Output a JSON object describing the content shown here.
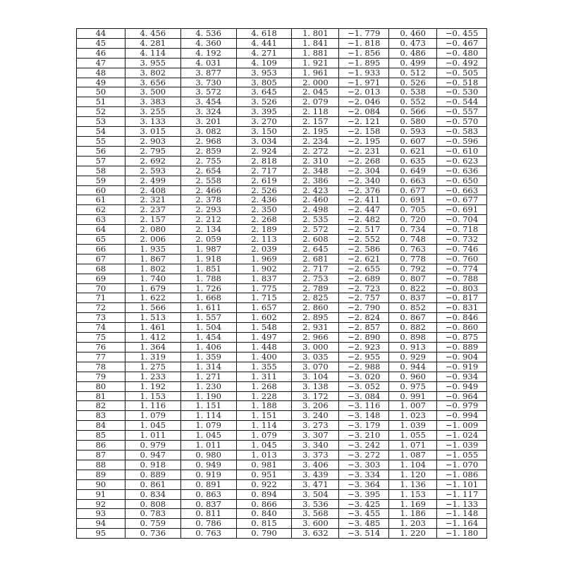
{
  "table": {
    "rows": [
      [
        "44",
        "4. 456",
        "4. 536",
        "4. 618",
        "1. 801",
        "−1. 779",
        "0. 460",
        "−0. 455"
      ],
      [
        "45",
        "4. 281",
        "4. 360",
        "4. 441",
        "1. 841",
        "−1. 818",
        "0. 473",
        "−0. 467"
      ],
      [
        "46",
        "4. 114",
        "4. 192",
        "4. 271",
        "1. 881",
        "−1. 856",
        "0. 486",
        "−0. 480"
      ],
      [
        "47",
        "3. 955",
        "4. 031",
        "4. 109",
        "1. 921",
        "−1. 895",
        "0. 499",
        "−0. 492"
      ],
      [
        "48",
        "3. 802",
        "3. 877",
        "3. 953",
        "1. 961",
        "−1. 933",
        "0. 512",
        "−0. 505"
      ],
      [
        "49",
        "3. 656",
        "3. 730",
        "3. 805",
        "2. 000",
        "−1. 971",
        "0. 526",
        "−0. 518"
      ],
      [
        "50",
        "3. 500",
        "3. 572",
        "3. 645",
        "2. 045",
        "−2. 013",
        "0. 538",
        "−0. 530"
      ],
      [
        "51",
        "3. 383",
        "3. 454",
        "3. 526",
        "2. 079",
        "−2. 046",
        "0. 552",
        "−0. 544"
      ],
      [
        "52",
        "3. 255",
        "3. 324",
        "3. 395",
        "2. 118",
        "−2. 084",
        "0. 566",
        "−0. 557"
      ],
      [
        "53",
        "3. 133",
        "3. 201",
        "3. 270",
        "2. 157",
        "−2. 121",
        "0. 580",
        "−0. 570"
      ],
      [
        "54",
        "3. 015",
        "3. 082",
        "3. 150",
        "2. 195",
        "−2. 158",
        "0. 593",
        "−0. 583"
      ],
      [
        "55",
        "2. 903",
        "2. 968",
        "3. 034",
        "2. 234",
        "−2. 195",
        "0. 607",
        "−0. 596"
      ],
      [
        "56",
        "2. 795",
        "2. 859",
        "2. 924",
        "2. 272",
        "−2. 231",
        "0. 621",
        "−0. 610"
      ],
      [
        "57",
        "2. 692",
        "2. 755",
        "2. 818",
        "2. 310",
        "−2. 268",
        "0. 635",
        "−0. 623"
      ],
      [
        "58",
        "2. 593",
        "2. 654",
        "2. 717",
        "2. 348",
        "−2. 304",
        "0. 649",
        "−0. 636"
      ],
      [
        "59",
        "2. 499",
        "2. 558",
        "2. 619",
        "2. 386",
        "−2. 340",
        "0. 663",
        "−0. 650"
      ],
      [
        "60",
        "2. 408",
        "2. 466",
        "2. 526",
        "2. 423",
        "−2. 376",
        "0. 677",
        "−0. 663"
      ],
      [
        "61",
        "2. 321",
        "2. 378",
        "2. 436",
        "2. 460",
        "−2. 411",
        "0. 691",
        "−0. 677"
      ],
      [
        "62",
        "2. 237",
        "2. 293",
        "2. 350",
        "2. 498",
        "−2. 447",
        "0. 705",
        "−0. 691"
      ],
      [
        "63",
        "2. 157",
        "2. 212",
        "2. 268",
        "2. 535",
        "−2. 482",
        "0. 720",
        "−0. 704"
      ],
      [
        "64",
        "2. 080",
        "2. 134",
        "2. 189",
        "2. 572",
        "−2. 517",
        "0. 734",
        "−0. 718"
      ],
      [
        "65",
        "2. 006",
        "2. 059",
        "2. 113",
        "2. 608",
        "−2. 552",
        "0. 748",
        "−0. 732"
      ],
      [
        "66",
        "1. 935",
        "1. 987",
        "2. 039",
        "2. 645",
        "−2. 586",
        "0. 763",
        "−0. 746"
      ],
      [
        "67",
        "1. 867",
        "1. 918",
        "1. 969",
        "2. 681",
        "−2. 621",
        "0. 778",
        "−0. 760"
      ],
      [
        "68",
        "1. 802",
        "1. 851",
        "1. 902",
        "2. 717",
        "−2. 655",
        "0. 792",
        "−0. 774"
      ],
      [
        "69",
        "1. 740",
        "1. 788",
        "1. 837",
        "2. 753",
        "−2. 689",
        "0. 807",
        "−0. 788"
      ],
      [
        "70",
        "1. 679",
        "1. 726",
        "1. 775",
        "2. 789",
        "−2. 723",
        "0. 822",
        "−0. 803"
      ],
      [
        "71",
        "1. 622",
        "1. 668",
        "1. 715",
        "2. 825",
        "−2. 757",
        "0. 837",
        "−0. 817"
      ],
      [
        "72",
        "1. 566",
        "1. 611",
        "1. 657",
        "2. 860",
        "−2. 790",
        "0. 852",
        "−0. 831"
      ],
      [
        "73",
        "1. 513",
        "1. 557",
        "1. 602",
        "2. 895",
        "−2. 824",
        "0. 867",
        "−0. 846"
      ],
      [
        "74",
        "1. 461",
        "1. 504",
        "1. 548",
        "2. 931",
        "−2. 857",
        "0. 882",
        "−0. 860"
      ],
      [
        "75",
        "1. 412",
        "1. 454",
        "1. 497",
        "2. 966",
        "−2. 890",
        "0. 898",
        "−0. 875"
      ],
      [
        "76",
        "1. 364",
        "1. 406",
        "1. 448",
        "3. 000",
        "−2. 923",
        "0. 913",
        "−0. 889"
      ],
      [
        "77",
        "1. 319",
        "1. 359",
        "1. 400",
        "3. 035",
        "−2. 955",
        "0. 929",
        "−0. 904"
      ],
      [
        "78",
        "1. 275",
        "1. 314",
        "1. 355",
        "3. 070",
        "−2. 988",
        "0. 944",
        "−0. 919"
      ],
      [
        "79",
        "1. 233",
        "1. 271",
        "1. 311",
        "3. 104",
        "−3. 020",
        "0. 960",
        "−0. 934"
      ],
      [
        "80",
        "1. 192",
        "1. 230",
        "1. 268",
        "3. 138",
        "−3. 052",
        "0. 975",
        "−0. 949"
      ],
      [
        "81",
        "1. 153",
        "1. 190",
        "1. 228",
        "3. 172",
        "−3. 084",
        "0. 991",
        "−0. 964"
      ],
      [
        "82",
        "1. 116",
        "1. 151",
        "1. 188",
        "3. 206",
        "−3. 116",
        "1. 007",
        "−0. 979"
      ],
      [
        "83",
        "1. 079",
        "1. 114",
        "1. 151",
        "3. 240",
        "−3. 148",
        "1. 023",
        "−0. 994"
      ],
      [
        "84",
        "1. 045",
        "1. 079",
        "1. 114",
        "3. 273",
        "−3. 179",
        "1. 039",
        "−1. 009"
      ],
      [
        "85",
        "1. 011",
        "1. 045",
        "1. 079",
        "3. 307",
        "−3. 210",
        "1. 055",
        "−1. 024"
      ],
      [
        "86",
        "0. 979",
        "1. 011",
        "1. 045",
        "3. 340",
        "−3. 242",
        "1. 071",
        "−1. 039"
      ],
      [
        "87",
        "0. 947",
        "0. 980",
        "1. 013",
        "3. 373",
        "−3. 272",
        "1. 087",
        "−1. 055"
      ],
      [
        "88",
        "0. 918",
        "0. 949",
        "0. 981",
        "3. 406",
        "−3. 303",
        "1. 104",
        "−1. 070"
      ],
      [
        "89",
        "0. 889",
        "0. 919",
        "0. 951",
        "3. 439",
        "−3. 334",
        "1. 120",
        "−1. 086"
      ],
      [
        "90",
        "0. 861",
        "0. 891",
        "0. 922",
        "3. 471",
        "−3. 364",
        "1. 136",
        "−1. 101"
      ],
      [
        "91",
        "0. 834",
        "0. 863",
        "0. 894",
        "3. 504",
        "−3. 395",
        "1. 153",
        "−1. 117"
      ],
      [
        "92",
        "0. 808",
        "0. 837",
        "0. 866",
        "3. 536",
        "−3. 425",
        "1. 169",
        "−1. 133"
      ],
      [
        "93",
        "0. 783",
        "0. 811",
        "0. 840",
        "3. 568",
        "−3. 455",
        "1. 186",
        "−1. 148"
      ],
      [
        "94",
        "0. 759",
        "0. 786",
        "0. 815",
        "3. 600",
        "−3. 485",
        "1. 203",
        "−1. 164"
      ],
      [
        "95",
        "0. 736",
        "0. 763",
        "0. 790",
        "3. 632",
        "−3. 514",
        "1. 220",
        "−1. 180"
      ]
    ]
  }
}
